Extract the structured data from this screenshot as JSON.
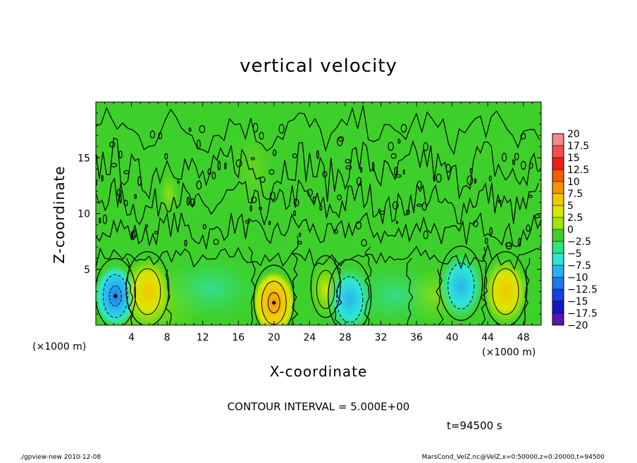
{
  "chart_data": {
    "type": "heatmap",
    "title": "vertical velocity",
    "xlabel": "X-coordinate",
    "ylabel": "Z-coordinate",
    "x_unit": "(×1000 m)",
    "y_unit": "(×1000 m)",
    "xlim": [
      0,
      50
    ],
    "ylim": [
      0,
      20
    ],
    "x_ticks": [
      4,
      8,
      12,
      16,
      20,
      24,
      28,
      32,
      36,
      40,
      44,
      48
    ],
    "y_ticks": [
      5,
      10,
      15
    ],
    "contour_interval_label": "CONTOUR INTERVAL = 5.000E+00",
    "time_label": "t=94500 s",
    "colorbar": {
      "labels": [
        "20",
        "17.5",
        "15",
        "12.5",
        "10",
        "7.5",
        "5",
        "2.5",
        "0",
        "−2.5",
        "−5",
        "−7.5",
        "−10",
        "−12.5",
        "−15",
        "−17.5",
        "−20"
      ],
      "colors": [
        "#f48a8a",
        "#f25050",
        "#f01e14",
        "#f45c00",
        "#f49400",
        "#f2c800",
        "#d8e600",
        "#a0e600",
        "#3ed02a",
        "#2ee67e",
        "#2ee6d6",
        "#28b4f0",
        "#2078f0",
        "#1440e0",
        "#1414c8",
        "#5a14b4"
      ]
    },
    "features": [
      {
        "x": 2.2,
        "z": 2.6,
        "sign": "down",
        "peak": -10
      },
      {
        "x": 5.8,
        "z": 3.0,
        "sign": "up",
        "peak": 7.5
      },
      {
        "x": 20.0,
        "z": 2.0,
        "sign": "up",
        "peak": 12.5
      },
      {
        "x": 25.8,
        "z": 3.2,
        "sign": "up",
        "peak": 5
      },
      {
        "x": 28.5,
        "z": 2.3,
        "sign": "down",
        "peak": -7.5
      },
      {
        "x": 41.0,
        "z": 3.5,
        "sign": "down",
        "peak": -7.5
      },
      {
        "x": 46.0,
        "z": 3.0,
        "sign": "up",
        "peak": 7.5
      }
    ]
  },
  "footer": {
    "left": "./gpview-new   2010-12-08",
    "right": "MarsCond_VelZ.nc@VelZ,x=0:50000,z=0:20000,t=94500"
  }
}
